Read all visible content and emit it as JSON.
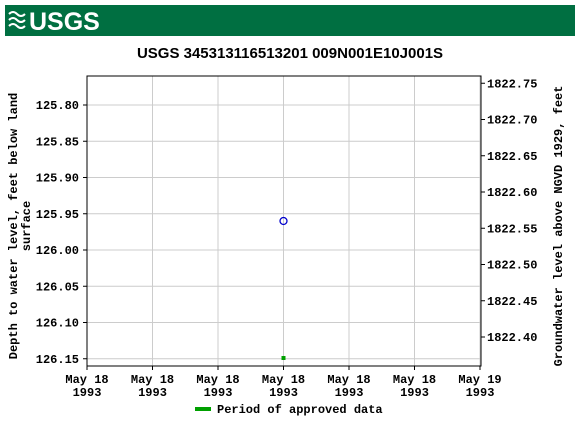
{
  "header": {
    "logo": "USGS"
  },
  "chart_data": {
    "type": "scatter",
    "title": "USGS 345313116513201 009N001E10J001S",
    "ylabel": "Depth to water level, feet below land\nsurface",
    "y2label": "Groundwater level above NGVD 1929, feet",
    "xlim": [
      "1993-05-18T00:00",
      "1993-05-19T00:00"
    ],
    "xticks": [
      {
        "value": "1993-05-18T00:00",
        "label": "May 18\n1993"
      },
      {
        "value": "1993-05-18T04:00",
        "label": "May 18\n1993"
      },
      {
        "value": "1993-05-18T08:00",
        "label": "May 18\n1993"
      },
      {
        "value": "1993-05-18T12:00",
        "label": "May 18\n1993"
      },
      {
        "value": "1993-05-18T16:00",
        "label": "May 18\n1993"
      },
      {
        "value": "1993-05-18T20:00",
        "label": "May 18\n1993"
      },
      {
        "value": "1993-05-19T00:00",
        "label": "May 19\n1993"
      }
    ],
    "ylim": [
      125.76,
      126.16
    ],
    "yticks": [
      {
        "value": 125.8,
        "label": "125.80"
      },
      125.85,
      {
        "value": 125.9,
        "label": "125.90"
      },
      125.95,
      {
        "value": 126,
        "label": "126.00"
      },
      126.05,
      {
        "value": 126.1,
        "label": "126.10"
      },
      126.15
    ],
    "y2lim": [
      1822.76,
      1822.36
    ],
    "y2ticks": [
      1822.75,
      {
        "value": 1822.7,
        "label": "1822.70"
      },
      1822.65,
      {
        "value": 1822.6,
        "label": "1822.60"
      },
      1822.55,
      {
        "value": 1822.5,
        "label": "1822.50"
      },
      1822.45,
      {
        "value": 1822.4,
        "label": "1822.40"
      }
    ],
    "grid": true,
    "points": {
      "x": [
        "1993-05-18T12:00"
      ],
      "values": [
        125.96
      ],
      "color": "#0000cc"
    },
    "approved": {
      "name": "Period of approved data",
      "color": "#00a000",
      "x": [
        "1993-05-18T12:00"
      ]
    }
  }
}
